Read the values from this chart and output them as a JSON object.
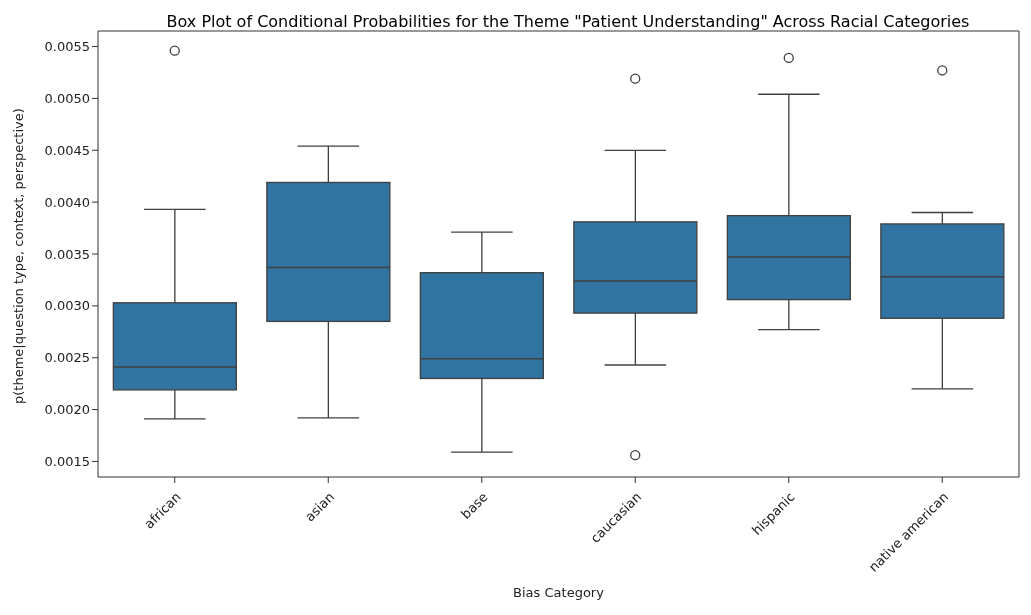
{
  "chart_data": {
    "type": "box",
    "title": "Box Plot of Conditional Probabilities for the Theme \"Patient Understanding\" Across Racial Categories",
    "xlabel": "Bias Category",
    "ylabel": "p(theme|question type, context, perspective)",
    "categories": [
      "african",
      "asian",
      "base",
      "caucasian",
      "hispanic",
      "native american"
    ],
    "color": "#3274a1",
    "boxes": [
      {
        "low": 0.00191,
        "q1": 0.00219,
        "median": 0.00241,
        "q3": 0.00303,
        "high": 0.00393,
        "outliers": [
          0.00546
        ]
      },
      {
        "low": 0.00192,
        "q1": 0.00285,
        "median": 0.00337,
        "q3": 0.00419,
        "high": 0.00454
      },
      {
        "low": 0.00159,
        "q1": 0.0023,
        "median": 0.00249,
        "q3": 0.00332,
        "high": 0.00371
      },
      {
        "low": 0.00243,
        "q1": 0.00293,
        "median": 0.00324,
        "q3": 0.00381,
        "high": 0.0045,
        "outliers": [
          0.00519,
          0.00156
        ]
      },
      {
        "low": 0.00277,
        "q1": 0.00306,
        "median": 0.00347,
        "q3": 0.00387,
        "high": 0.00504,
        "outliers": [
          0.00539
        ]
      },
      {
        "low": 0.0022,
        "q1": 0.00288,
        "median": 0.00328,
        "q3": 0.00379,
        "high": 0.0039,
        "outliers": [
          0.00527
        ]
      }
    ],
    "ylim": [
      0.00135,
      0.00565
    ],
    "yticks": [
      0.0015,
      {
        "value": 0.002,
        "label": "0.0020"
      },
      0.0025,
      {
        "value": 0.003,
        "label": "0.0030"
      },
      0.0035,
      {
        "value": 0.004,
        "label": "0.0040"
      },
      0.0045,
      {
        "value": 0.005,
        "label": "0.0050"
      },
      0.0055
    ]
  }
}
